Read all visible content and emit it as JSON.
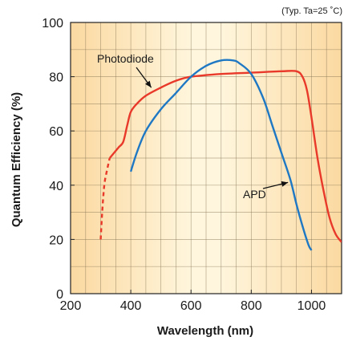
{
  "chart_data": {
    "type": "line",
    "condition_note": "(Typ. Ta=25 ˚C)",
    "xlabel": "Wavelength (nm)",
    "ylabel": "Quantum Efficiency (%)",
    "xlim": [
      200,
      1100
    ],
    "ylim": [
      0,
      100
    ],
    "x_ticks": [
      200,
      400,
      600,
      800,
      1000
    ],
    "y_ticks": [
      0,
      20,
      40,
      60,
      80,
      100
    ],
    "grid": true,
    "series": [
      {
        "name": "Photodiode",
        "color": "#e8392a",
        "dashed_until_x": 330,
        "points": [
          [
            300,
            20
          ],
          [
            305,
            30
          ],
          [
            312,
            40
          ],
          [
            320,
            45
          ],
          [
            330,
            50
          ],
          [
            345,
            52
          ],
          [
            360,
            54
          ],
          [
            375,
            56
          ],
          [
            388,
            62
          ],
          [
            400,
            67
          ],
          [
            420,
            70
          ],
          [
            450,
            73
          ],
          [
            500,
            76
          ],
          [
            550,
            78.5
          ],
          [
            600,
            80
          ],
          [
            700,
            81
          ],
          [
            800,
            81.5
          ],
          [
            900,
            82
          ],
          [
            950,
            82
          ],
          [
            970,
            80
          ],
          [
            985,
            75
          ],
          [
            1000,
            65
          ],
          [
            1020,
            50
          ],
          [
            1040,
            38
          ],
          [
            1060,
            28
          ],
          [
            1080,
            22
          ],
          [
            1100,
            19
          ]
        ]
      },
      {
        "name": "APD",
        "color": "#1f78c4",
        "points": [
          [
            400,
            45
          ],
          [
            420,
            52
          ],
          [
            450,
            60
          ],
          [
            500,
            68
          ],
          [
            550,
            74
          ],
          [
            600,
            80
          ],
          [
            650,
            84
          ],
          [
            700,
            86
          ],
          [
            740,
            86
          ],
          [
            760,
            85
          ],
          [
            800,
            81
          ],
          [
            840,
            72
          ],
          [
            870,
            62
          ],
          [
            900,
            52
          ],
          [
            930,
            42
          ],
          [
            950,
            33
          ],
          [
            970,
            25
          ],
          [
            990,
            18
          ],
          [
            1000,
            16
          ]
        ]
      }
    ],
    "annotations": [
      {
        "text": "Photodiode",
        "target": [
          468,
          76
        ]
      },
      {
        "text": "APD",
        "target": [
          922,
          41
        ]
      }
    ]
  },
  "style": {
    "plot_bg_edge": "#fbd9a1",
    "plot_bg_center": "#fff6dd",
    "grid_color": "#7a6a4a"
  }
}
